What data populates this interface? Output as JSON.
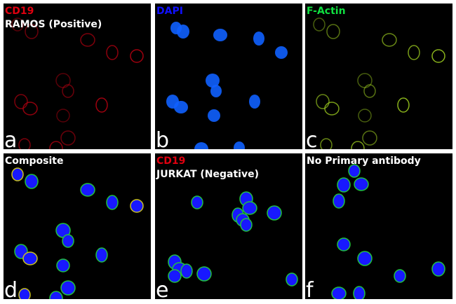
{
  "colors": {
    "red": "#e0000f",
    "blue": "#1010ff",
    "green": "#10e040",
    "white": "#ffffff"
  },
  "panels": [
    {
      "letter": "a",
      "label1": "CD19",
      "label1_color": "#e0000f",
      "label2": "RAMOS (Positive)",
      "channel": "red"
    },
    {
      "letter": "b",
      "label1": "DAPI",
      "label1_color": "#1010ff",
      "label2": "",
      "channel": "blue"
    },
    {
      "letter": "c",
      "label1": "F-Actin",
      "label1_color": "#10e040",
      "label2": "",
      "channel": "green"
    },
    {
      "letter": "d",
      "label1": "Composite",
      "label1_color": "#ffffff",
      "label2": "",
      "channel": "composite"
    },
    {
      "letter": "e",
      "label1": "CD19",
      "label1_color": "#e0000f",
      "label2": "JURKAT (Negative)",
      "channel": "negative"
    },
    {
      "letter": "f",
      "label1": "No Primary antibody",
      "label1_color": "#ffffff",
      "label2": "",
      "channel": "noprimary"
    }
  ]
}
